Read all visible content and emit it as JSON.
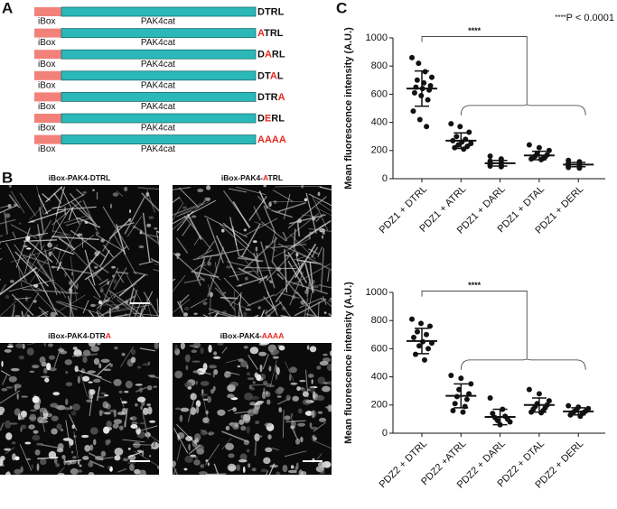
{
  "panel_a": {
    "letter": "A",
    "constructs": [
      {
        "domain": "iBox",
        "catalytic": "PAK4cat",
        "motif": [
          {
            "text": "DTRL",
            "mutated": false
          }
        ]
      },
      {
        "domain": "iBox",
        "catalytic": "PAK4cat",
        "motif": [
          {
            "text": "A",
            "mutated": true
          },
          {
            "text": "TRL",
            "mutated": false
          }
        ]
      },
      {
        "domain": "iBox",
        "catalytic": "PAK4cat",
        "motif": [
          {
            "text": "D",
            "mutated": false
          },
          {
            "text": "A",
            "mutated": true
          },
          {
            "text": "RL",
            "mutated": false
          }
        ]
      },
      {
        "domain": "iBox",
        "catalytic": "PAK4cat",
        "motif": [
          {
            "text": "DT",
            "mutated": false
          },
          {
            "text": "A",
            "mutated": true
          },
          {
            "text": "L",
            "mutated": false
          }
        ]
      },
      {
        "domain": "iBox",
        "catalytic": "PAK4cat",
        "motif": [
          {
            "text": "DTR",
            "mutated": false
          },
          {
            "text": "A",
            "mutated": true
          }
        ]
      },
      {
        "domain": "iBox",
        "catalytic": "PAK4cat",
        "motif": [
          {
            "text": "D",
            "mutated": false
          },
          {
            "text": "E",
            "mutated": true
          },
          {
            "text": "RL",
            "mutated": false
          }
        ]
      },
      {
        "domain": "iBox",
        "catalytic": "PAK4cat",
        "motif": [
          {
            "text": "AAAA",
            "mutated": true
          }
        ]
      }
    ]
  },
  "panel_b": {
    "letter": "B",
    "images": [
      {
        "title": [
          {
            "text": "iBox-PAK4-DTRL",
            "mutated": false
          }
        ]
      },
      {
        "title": [
          {
            "text": "iBox-PAK4-",
            "mutated": false
          },
          {
            "text": "A",
            "mutated": true
          },
          {
            "text": "TRL",
            "mutated": false
          }
        ]
      },
      {
        "title": [
          {
            "text": "iBox-PAK4-DTR",
            "mutated": false
          },
          {
            "text": "A",
            "mutated": true
          }
        ]
      },
      {
        "title": [
          {
            "text": "iBox-PAK4-",
            "mutated": false
          },
          {
            "text": "AAAA",
            "mutated": true
          }
        ]
      }
    ]
  },
  "panel_c": {
    "letter": "C",
    "significance_key": {
      "stars": "****",
      "text": "P < 0.0001"
    }
  },
  "chart_data": [
    {
      "type": "dotplot",
      "ylabel": "Mean  fluorescence intensity (A.U.)",
      "categories": [
        "PDZ1 + DTRL",
        "PDZ1 + ATRL",
        "PDZ1 + DARL",
        "PDZ1 + DTAL",
        "PDZ1 + DERL"
      ],
      "points": [
        [
          860,
          820,
          760,
          720,
          700,
          680,
          660,
          650,
          640,
          630,
          610,
          590,
          560,
          480,
          420,
          370
        ],
        [
          390,
          370,
          330,
          300,
          280,
          270,
          260,
          250,
          240,
          230,
          220,
          210
        ],
        [
          160,
          140,
          125,
          115,
          110,
          105,
          100,
          95,
          90,
          85
        ],
        [
          240,
          220,
          200,
          180,
          170,
          160,
          155,
          150,
          145,
          140,
          135
        ],
        [
          130,
          120,
          110,
          105,
          100,
          95,
          90,
          85,
          80,
          75
        ]
      ],
      "means": [
        640,
        270,
        110,
        165,
        100
      ],
      "sd": [
        125,
        55,
        20,
        30,
        15
      ],
      "ylim": [
        0,
        1000
      ],
      "yticks": [
        0,
        200,
        400,
        600,
        800,
        1000
      ],
      "bracket_label": "****",
      "color": "#111111"
    },
    {
      "type": "dotplot",
      "ylabel": "Mean  fluorescence intensity (A.U.)",
      "categories": [
        "PDZ2 + DTRL",
        "PDZ2 +ATRL",
        "PDZ2 + DARL",
        "PDZ2 + DTAL",
        "PDZ2 + DERL"
      ],
      "points": [
        [
          810,
          780,
          760,
          720,
          700,
          680,
          650,
          640,
          620,
          600,
          560,
          520
        ],
        [
          410,
          390,
          350,
          310,
          280,
          260,
          240,
          210,
          190,
          160,
          150
        ],
        [
          250,
          170,
          140,
          120,
          110,
          100,
          90,
          80,
          60
        ],
        [
          310,
          280,
          230,
          210,
          200,
          190,
          180,
          170,
          160,
          150,
          145
        ],
        [
          195,
          185,
          175,
          165,
          160,
          155,
          150,
          145,
          140,
          130,
          120
        ]
      ],
      "means": [
        655,
        265,
        115,
        200,
        155
      ],
      "sd": [
        90,
        85,
        55,
        50,
        25
      ],
      "ylim": [
        0,
        1000
      ],
      "yticks": [
        0,
        200,
        400,
        600,
        800,
        1000
      ],
      "bracket_label": "****",
      "color": "#111111"
    }
  ]
}
